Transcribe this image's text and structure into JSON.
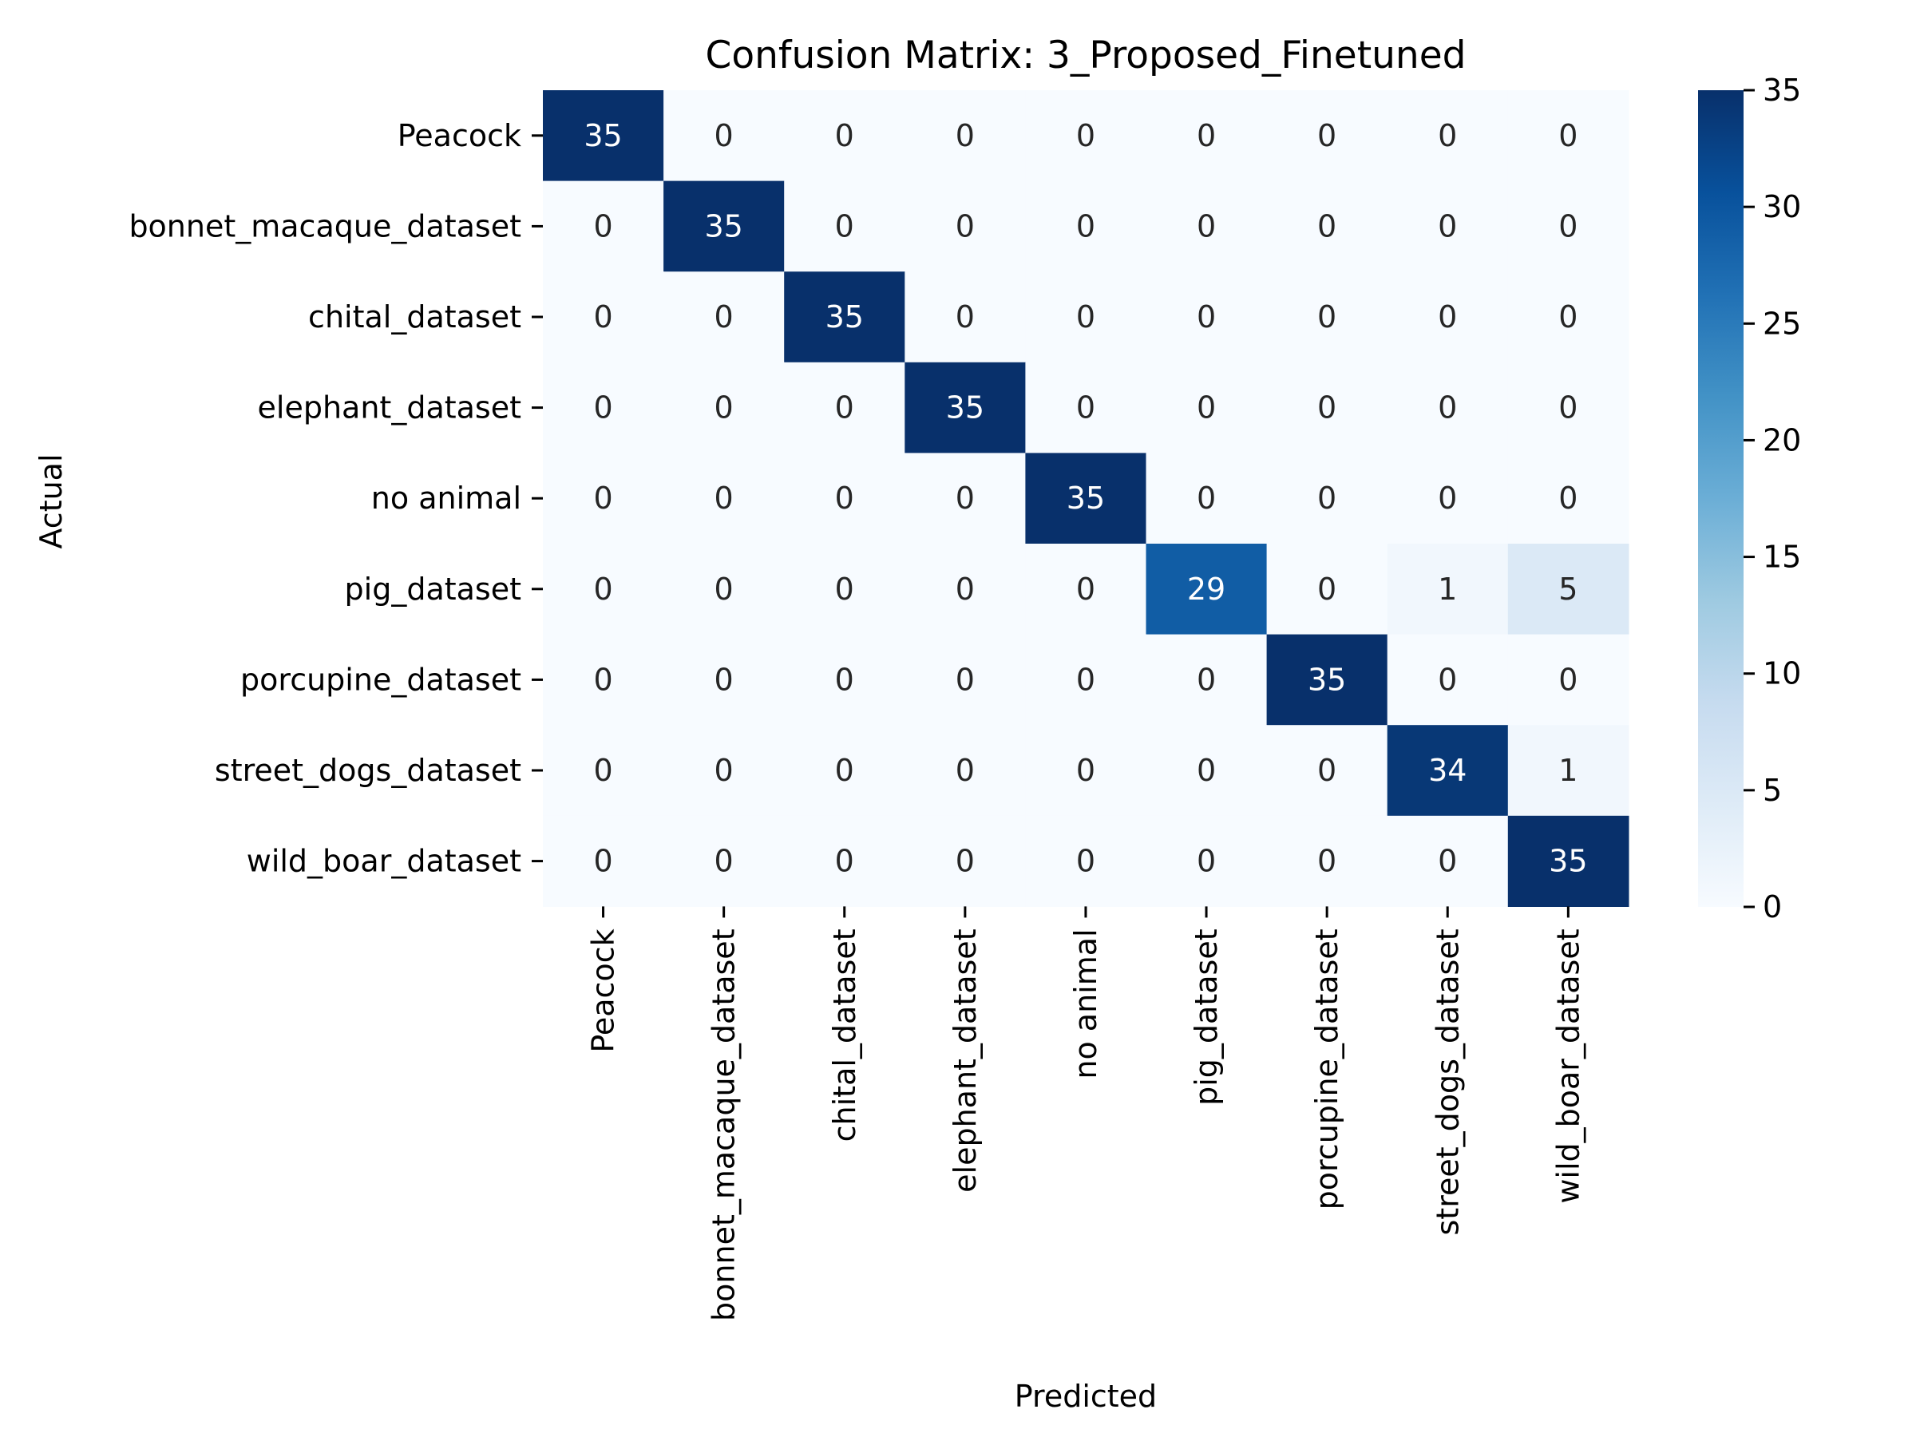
{
  "chart_data": {
    "type": "heatmap",
    "title": "Confusion Matrix: 3_Proposed_Finetuned",
    "xlabel": "Predicted",
    "ylabel": "Actual",
    "x_categories": [
      "Peacock",
      "bonnet_macaque_dataset",
      "chital_dataset",
      "elephant_dataset",
      "no animal",
      "pig_dataset",
      "porcupine_dataset",
      "street_dogs_dataset",
      "wild_boar_dataset"
    ],
    "y_categories": [
      "Peacock",
      "bonnet_macaque_dataset",
      "chital_dataset",
      "elephant_dataset",
      "no animal",
      "pig_dataset",
      "porcupine_dataset",
      "street_dogs_dataset",
      "wild_boar_dataset"
    ],
    "values": [
      [
        35,
        0,
        0,
        0,
        0,
        0,
        0,
        0,
        0
      ],
      [
        0,
        35,
        0,
        0,
        0,
        0,
        0,
        0,
        0
      ],
      [
        0,
        0,
        35,
        0,
        0,
        0,
        0,
        0,
        0
      ],
      [
        0,
        0,
        0,
        35,
        0,
        0,
        0,
        0,
        0
      ],
      [
        0,
        0,
        0,
        0,
        35,
        0,
        0,
        0,
        0
      ],
      [
        0,
        0,
        0,
        0,
        0,
        29,
        0,
        1,
        5
      ],
      [
        0,
        0,
        0,
        0,
        0,
        0,
        35,
        0,
        0
      ],
      [
        0,
        0,
        0,
        0,
        0,
        0,
        0,
        34,
        1
      ],
      [
        0,
        0,
        0,
        0,
        0,
        0,
        0,
        0,
        35
      ]
    ],
    "colormap": "Blues",
    "colorbar": {
      "range": [
        0,
        35
      ],
      "ticks": [
        0,
        5,
        10,
        15,
        20,
        25,
        30,
        35
      ]
    }
  }
}
